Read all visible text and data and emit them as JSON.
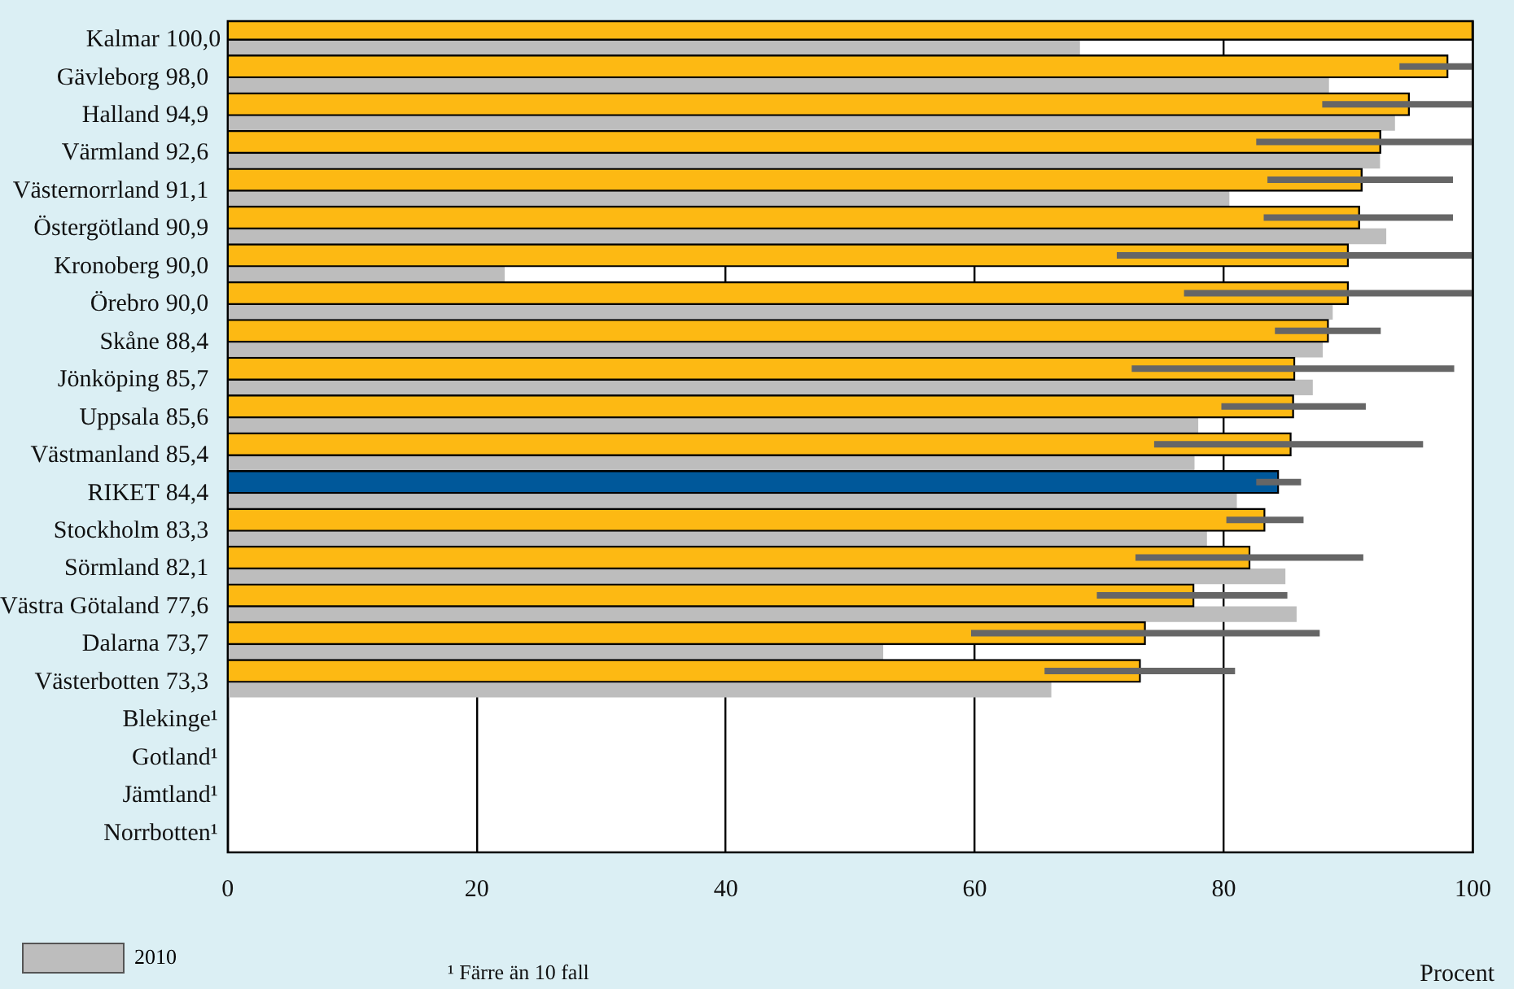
{
  "chart_data": {
    "type": "bar",
    "orientation": "horizontal",
    "xlabel": "Procent",
    "categories": [
      "Kalmar",
      "Gävleborg",
      "Halland",
      "Värmland",
      "Västernorrland",
      "Östergötland",
      "Kronoberg",
      "Örebro",
      "Skåne",
      "Jönköping",
      "Uppsala",
      "Västmanland",
      "RIKET",
      "Stockholm",
      "Sörmland",
      "Västra Götaland",
      "Dalarna",
      "Västerbotten",
      "Blekinge¹",
      "Gotland¹",
      "Jämtland¹",
      "Norrbotten¹"
    ],
    "series": [
      {
        "colors": [
          "#fdb913",
          "#fdb913",
          "#fdb913",
          "#fdb913",
          "#fdb913",
          "#fdb913",
          "#fdb913",
          "#fdb913",
          "#fdb913",
          "#fdb913",
          "#fdb913",
          "#fdb913",
          "#00589a",
          "#fdb913",
          "#fdb913",
          "#fdb913",
          "#fdb913",
          "#fdb913",
          "#fdb913",
          "#fdb913",
          "#fdb913",
          "#fdb913"
        ],
        "values": [
          100.0,
          98.0,
          94.9,
          92.6,
          91.1,
          90.9,
          90.0,
          90.0,
          88.4,
          85.7,
          85.6,
          85.4,
          84.4,
          83.3,
          82.1,
          77.6,
          73.7,
          73.3,
          null,
          null,
          null,
          null
        ],
        "value_labels": [
          "100,0",
          "98,0",
          "94,9",
          "92,6",
          "91,1",
          "90,9",
          "90,0",
          "90,0",
          "88,4",
          "85,7",
          "85,6",
          "85,4",
          "84,4",
          "83,3",
          "82,1",
          "77,6",
          "73,7",
          "73,3",
          null,
          null,
          null,
          null
        ],
        "errors": [
          null,
          [
            94.1,
            100
          ],
          [
            87.9,
            100
          ],
          [
            82.6,
            100
          ],
          [
            83.5,
            98.4
          ],
          [
            83.2,
            98.4
          ],
          [
            71.4,
            100
          ],
          [
            76.8,
            100
          ],
          [
            84.1,
            92.6
          ],
          [
            72.6,
            98.5
          ],
          [
            79.8,
            91.4
          ],
          [
            74.4,
            96.0
          ],
          [
            82.6,
            86.2
          ],
          [
            80.2,
            86.4
          ],
          [
            72.9,
            91.2
          ],
          [
            69.8,
            85.1
          ],
          [
            59.7,
            87.7
          ],
          [
            65.6,
            80.9
          ],
          null,
          null,
          null,
          null
        ]
      },
      {
        "name": "2010",
        "color": "#bdbdbd",
        "values": [
          68.4,
          88.4,
          93.7,
          92.5,
          80.4,
          93.0,
          22.2,
          88.7,
          87.9,
          87.1,
          77.9,
          77.6,
          81.0,
          78.6,
          84.9,
          85.8,
          52.6,
          66.1,
          null,
          null,
          null,
          null
        ]
      }
    ],
    "xlim": [
      0,
      100
    ],
    "xticks": [
      0,
      20,
      40,
      60,
      80,
      100
    ],
    "grid": "x",
    "legend": "bottom left",
    "annotations": [
      "¹ Färre än 10 fall"
    ]
  }
}
